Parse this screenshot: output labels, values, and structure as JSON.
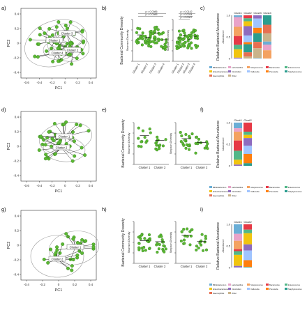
{
  "panel_letters": [
    "a)",
    "b)",
    "c)",
    "d)",
    "e)",
    "f)",
    "g)",
    "h)",
    "i)"
  ],
  "pca": {
    "xlabel": "PC1",
    "ylabel": "PC2",
    "xticks": [
      "-0.6",
      "-0.4",
      "-0.2",
      "0",
      "0.2",
      "0.4"
    ],
    "xticks_g": [
      "-0.4",
      "-0.2",
      "0",
      "0.2",
      "0.4"
    ],
    "yticks": [
      "-0.4",
      "-0.2",
      "0",
      "0.2",
      "0.4"
    ],
    "cluster_labels_a": [
      "Cluster 1",
      "Cluster 2",
      "Cluster 3",
      "Cluster 4"
    ],
    "cluster_labels_d": [
      "Cluster 1",
      "Cluster 2"
    ],
    "cluster_labels_g": [
      "Cluster 1",
      "Cluster 2"
    ]
  },
  "diversity": {
    "ylabel": "Bacterial Community Diversity",
    "left_axis": "Shannon Diversity",
    "right_axis": "Simpson Diversity",
    "clusters4": [
      "Cluster 1",
      "Cluster 2",
      "Cluster 3",
      "Cluster 4"
    ],
    "clusters2": [
      "Cluster 1",
      "Cluster 2"
    ],
    "pvals_b_left": [
      "p = 0.0085",
      "p = 0.0085"
    ],
    "pvals_b_right": [
      "p = 0.0142",
      "p = 0.0034",
      "p = 0.0007"
    ]
  },
  "abundance": {
    "ylabel": "Relative Bacterial Abundance",
    "sublabel": "Abundance",
    "yticks": [
      "1.0",
      "0.5",
      "0"
    ],
    "cols_c": [
      "Clust1",
      "Clust2",
      "Clust3",
      "Clust4"
    ],
    "cols_f": [
      "Clust1",
      "Clust2"
    ],
    "cols_i": [
      "Clust1",
      "Clust2"
    ],
    "legend_labels": [
      "Bifidobacterium",
      "Lactobacillus",
      "Streptococcus",
      "Bacteroides",
      "Enterococcus",
      "Enterobacteriaceae",
      "Clostridium",
      "Veillonella",
      "Prevotella",
      "Staphylococcus",
      "Haemophilus",
      "Other"
    ]
  },
  "colors": {
    "point": "#5cb833",
    "point_dark": "#2e7d1a",
    "ellipse": "#9a9a9a",
    "line": "#333333",
    "stack": [
      "#6aaed6",
      "#e9a3c9",
      "#f4a261",
      "#e63946",
      "#52b788",
      "#f1c40f",
      "#8e6bbf",
      "#a0c4ff",
      "#ff7f0e",
      "#2a9d8f",
      "#e76f51",
      "#c9b38a"
    ]
  }
}
